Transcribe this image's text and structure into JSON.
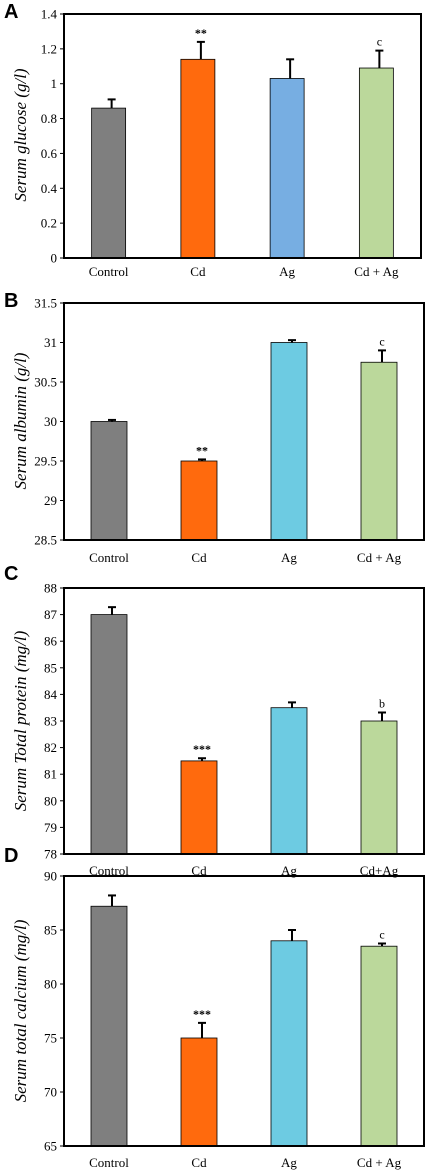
{
  "chart_data": [
    {
      "type": "bar",
      "panel": "A",
      "categories": [
        "Control",
        "Cd",
        "Ag",
        "Cd + Ag"
      ],
      "values": [
        0.86,
        1.14,
        1.03,
        1.09
      ],
      "errors": [
        0.05,
        0.1,
        0.11,
        0.1
      ],
      "colors": [
        "#7f7f7f",
        "#ff6a0d",
        "#77aee2",
        "#bbd89b"
      ],
      "annotations": [
        "",
        "**",
        "",
        "c"
      ],
      "ylabel": "Serum glucose (g/l)",
      "ylim": [
        0,
        1.4
      ],
      "yticks": [
        0,
        0.2,
        0.4,
        0.6,
        0.8,
        1,
        1.2,
        1.4
      ],
      "yticklabels": [
        "0",
        "0.2",
        "0.4",
        "0.6",
        "0.8",
        "1",
        "1.2",
        "1.4"
      ]
    },
    {
      "type": "bar",
      "panel": "B",
      "categories": [
        "Control",
        "Cd",
        "Ag",
        "Cd + Ag"
      ],
      "values": [
        30.0,
        29.5,
        31.0,
        30.75
      ],
      "errors": [
        0.02,
        0.02,
        0.03,
        0.15
      ],
      "colors": [
        "#7f7f7f",
        "#ff6a0d",
        "#6dcbe2",
        "#bbd89b"
      ],
      "annotations": [
        "",
        "**",
        "",
        "c"
      ],
      "ylabel": "Serum albumin (g/l)",
      "ylim": [
        28.5,
        31.5
      ],
      "yticks": [
        28.5,
        29,
        29.5,
        30,
        30.5,
        31,
        31.5
      ],
      "yticklabels": [
        "28.5",
        "29",
        "29.5",
        "30",
        "30.5",
        "31",
        "31.5"
      ]
    },
    {
      "type": "bar",
      "panel": "C",
      "categories": [
        "Control",
        "Cd",
        "Ag",
        "Cd+Ag"
      ],
      "values": [
        87.0,
        81.5,
        83.5,
        83.0
      ],
      "errors": [
        0.28,
        0.1,
        0.2,
        0.32
      ],
      "colors": [
        "#7f7f7f",
        "#ff6a0d",
        "#6dcbe2",
        "#bbd89b"
      ],
      "annotations": [
        "",
        "***",
        "",
        "b"
      ],
      "ylabel": "Serum Total protein (mg/l)",
      "ylim": [
        78,
        88
      ],
      "yticks": [
        78,
        79,
        80,
        81,
        82,
        83,
        84,
        85,
        86,
        87,
        88
      ],
      "yticklabels": [
        "78",
        "79",
        "80",
        "81",
        "82",
        "83",
        "84",
        "85",
        "86",
        "87",
        "88"
      ]
    },
    {
      "type": "bar",
      "panel": "D",
      "categories": [
        "Control",
        "Cd",
        "Ag",
        "Cd + Ag"
      ],
      "values": [
        87.2,
        75.0,
        84.0,
        83.5
      ],
      "errors": [
        1.0,
        1.4,
        1.0,
        0.25
      ],
      "colors": [
        "#7f7f7f",
        "#ff6a0d",
        "#6dcbe2",
        "#bbd89b"
      ],
      "annotations": [
        "",
        "***",
        "",
        "c"
      ],
      "ylabel": "Serum total calcium (mg/l)",
      "ylim": [
        65,
        90
      ],
      "yticks": [
        65,
        70,
        75,
        80,
        85,
        90
      ],
      "yticklabels": [
        "65",
        "70",
        "75",
        "80",
        "85",
        "90"
      ]
    }
  ]
}
